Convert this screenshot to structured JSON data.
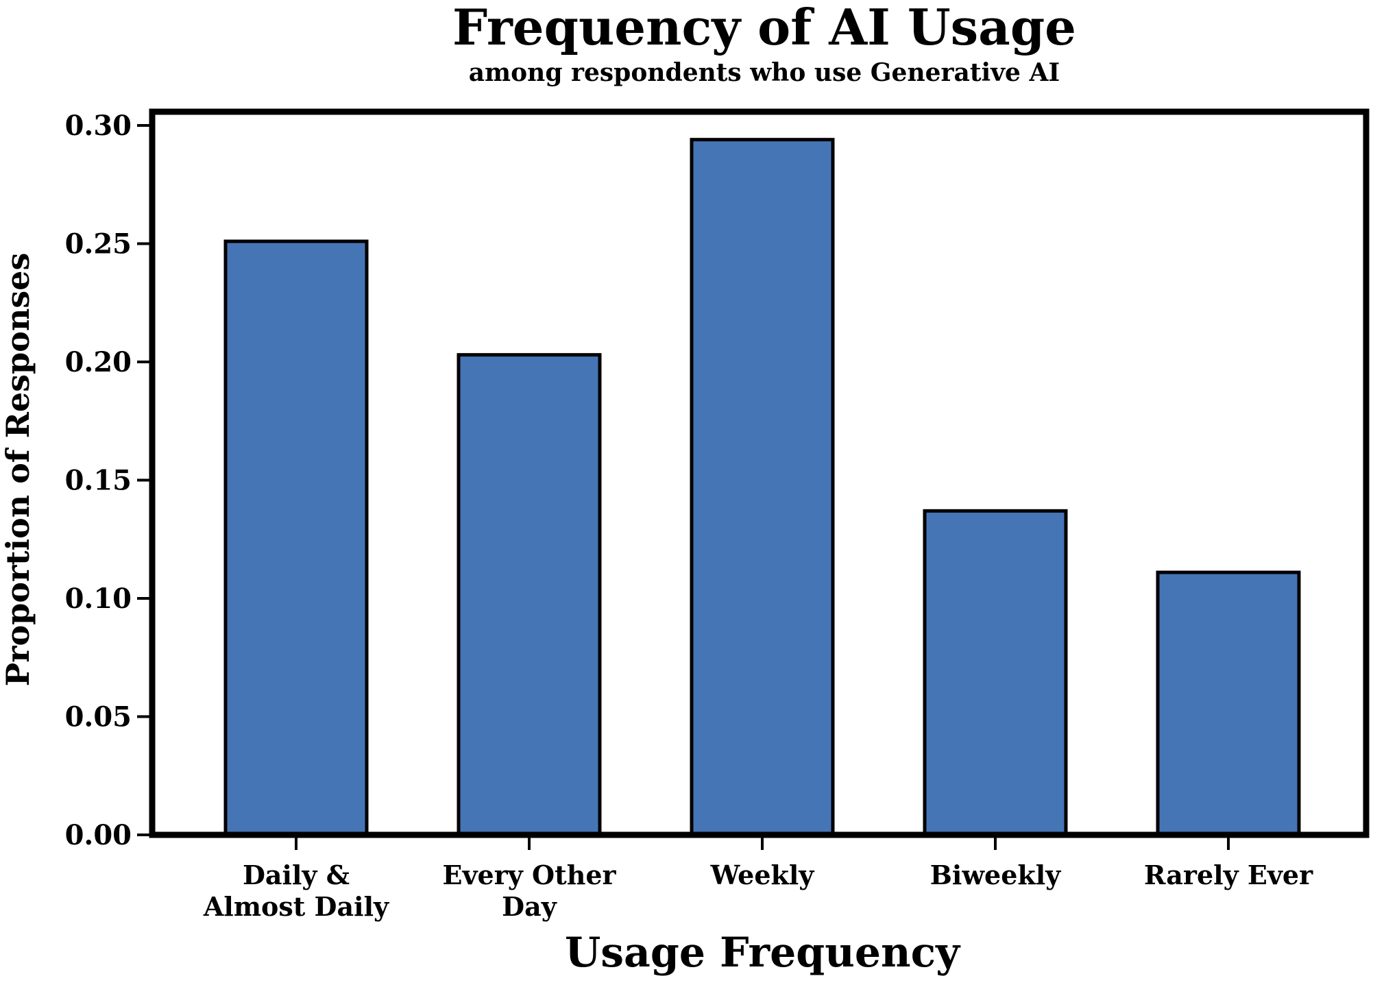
{
  "chart_data": {
    "type": "bar",
    "title": "Frequency of AI Usage",
    "subtitle": "among respondents who use Generative AI",
    "xlabel": "Usage Frequency",
    "ylabel": "Proportion of Responses",
    "categories": [
      [
        "Daily &",
        "Almost Daily"
      ],
      [
        "Every Other",
        "Day"
      ],
      [
        "Weekly"
      ],
      [
        "Biweekly"
      ],
      [
        "Rarely Ever"
      ]
    ],
    "values": [
      0.251,
      0.203,
      0.294,
      0.137,
      0.111
    ],
    "ylim": [
      0,
      0.307
    ],
    "yticks": [
      "0.00",
      "0.05",
      "0.10",
      "0.15",
      "0.20",
      "0.25",
      "0.30"
    ],
    "ytick_values": [
      0,
      0.05,
      0.1,
      0.15,
      0.2,
      0.25,
      0.3
    ],
    "bar_color": "#4675b6",
    "edge_color": "#000000",
    "grid": false
  }
}
